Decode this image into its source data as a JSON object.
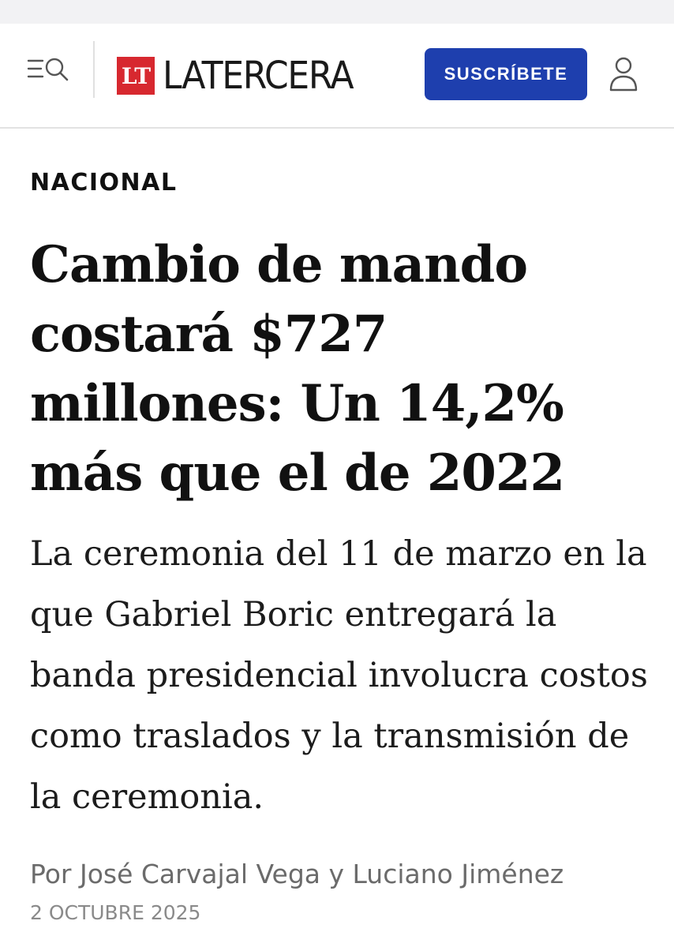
{
  "header": {
    "logo_mark": "LT",
    "logo_text": "LATERCERA",
    "subscribe_label": "SUSCRÍBETE",
    "icons": {
      "menu": "menu-search-icon",
      "user": "user-icon"
    }
  },
  "article": {
    "section": "NACIONAL",
    "headline": "Cambio de mando costará $727 millones: Un 14,2% más que el de 2022",
    "lead": "La ceremonia del 11 de marzo en la que Gabriel Boric entregará la banda presidencial involucra costos como traslados y la transmisión de la ceremonia.",
    "byline": "Por José Carvajal Vega y Luciano Jiménez",
    "date": "2 OCTUBRE 2025"
  },
  "colors": {
    "brand_red": "#d7282f",
    "subscribe_blue": "#1e3fae"
  }
}
